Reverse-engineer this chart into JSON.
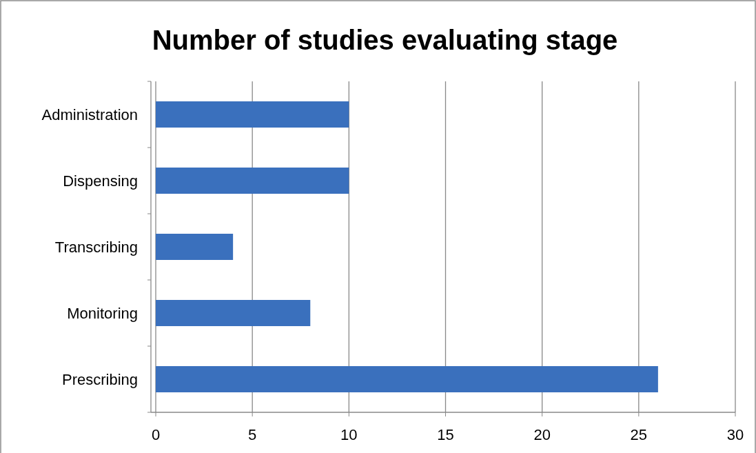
{
  "chart_data": {
    "type": "bar",
    "orientation": "horizontal",
    "title": "Number of studies evaluating stage",
    "categories": [
      "Administration",
      "Dispensing",
      "Transcribing",
      "Monitoring",
      "Prescribing"
    ],
    "values": [
      10,
      10,
      4,
      8,
      26
    ],
    "color": "#3a70bd",
    "xlim": [
      0,
      30
    ],
    "xticks": [
      0,
      5,
      10,
      15,
      20,
      25,
      30
    ],
    "grid": "x"
  }
}
